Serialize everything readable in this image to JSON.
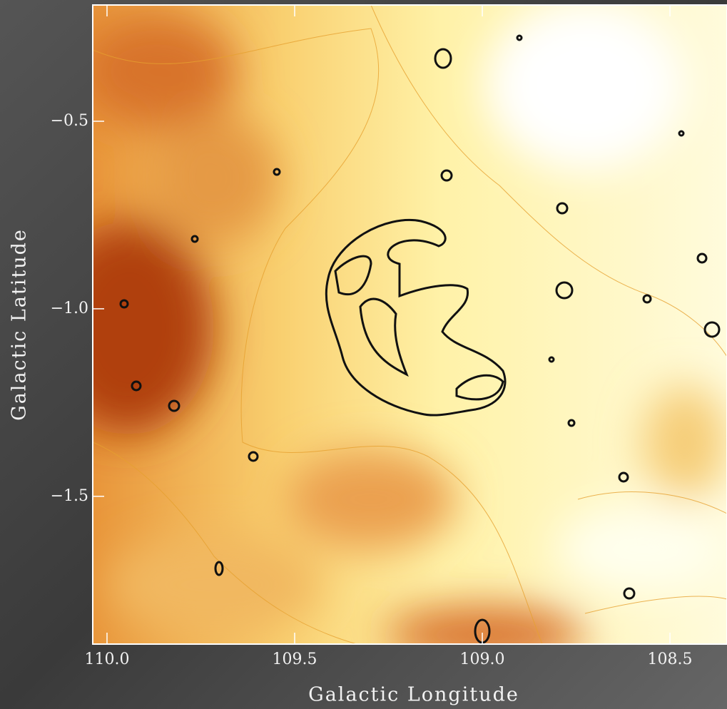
{
  "chart_data": {
    "type": "image",
    "xlabel": "Galactic Longitude",
    "ylabel": "Galactic Latitude",
    "xlim": [
      110.038,
      108.348
    ],
    "ylim": [
      -1.894,
      -0.19
    ],
    "xticks": [
      {
        "value": 110.0,
        "label": "110.0"
      },
      {
        "value": 109.5,
        "label": "109.5"
      },
      {
        "value": 109.0,
        "label": "109.0"
      },
      {
        "value": 108.5,
        "label": "108.5"
      }
    ],
    "yticks": [
      {
        "value": -0.5,
        "label": "−0.5"
      },
      {
        "value": -1.0,
        "label": "−1.0"
      },
      {
        "value": -1.5,
        "label": "−1.5"
      }
    ]
  }
}
